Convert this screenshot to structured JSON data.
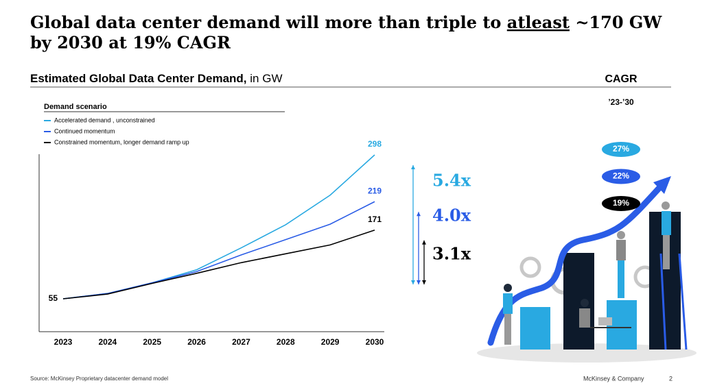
{
  "slide": {
    "title_parts": [
      "Global data center demand will more than triple to",
      "atleast",
      "~170 GW",
      "by 2030 at 19% CAGR"
    ],
    "subtitle_bold": "Estimated Global Data Center Demand,",
    "subtitle_unit": "in GW",
    "cagr_header": "CAGR",
    "cagr_period": "’23-’30",
    "cagr": [
      {
        "label": "27%",
        "color": "#29a9e1"
      },
      {
        "label": "22%",
        "color": "#2a5ce6"
      },
      {
        "label": "19%",
        "color": "#000000"
      }
    ],
    "multipliers": [
      {
        "label": "5.4x",
        "color": "#29a9e1"
      },
      {
        "label": "4.0x",
        "color": "#2a5ce6"
      },
      {
        "label": "3.1x",
        "color": "#000000"
      }
    ],
    "source": "Source: McKinsey Proprietary datacenter demand model",
    "company": "McKinsey & Company",
    "page": "2"
  },
  "chart_data": {
    "type": "line",
    "legend_title": "Demand scenario",
    "categories": [
      "2023",
      "2024",
      "2025",
      "2026",
      "2027",
      "2028",
      "2029",
      "2030"
    ],
    "series": [
      {
        "name": "Accelerated demand , unconstrained",
        "color": "#29a9e1",
        "values": [
          55,
          64,
          82,
          104,
          141,
          180,
          230,
          298
        ]
      },
      {
        "name": "Continued momentum",
        "color": "#2a5ce6",
        "values": [
          55,
          64,
          82,
          101,
          129,
          155,
          181,
          219
        ]
      },
      {
        "name": "Constrained momentum, longer demand ramp up",
        "color": "#000000",
        "values": [
          55,
          63,
          81,
          98,
          116,
          131,
          146,
          171
        ]
      }
    ]
  }
}
